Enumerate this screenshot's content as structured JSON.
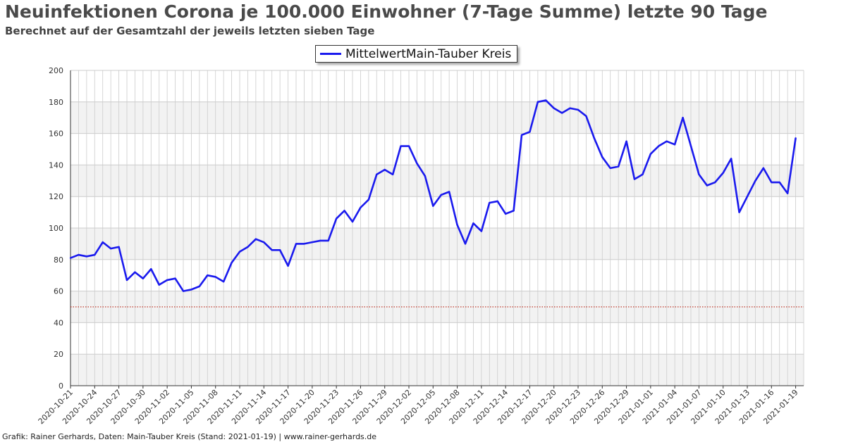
{
  "header": {
    "title": "Neuinfektionen Corona je 100.000 Einwohner (7-Tage Summe) letzte 90 Tage",
    "subtitle": "Berechnet auf der Gesamtzahl der jeweils letzten sieben Tage"
  },
  "footer": {
    "text": "Grafik: Rainer Gerhards, Daten: Main-Tauber Kreis (Stand: 2021-01-19) | www.rainer-gerhards.de"
  },
  "colors": {
    "series": "#1a1aee",
    "threshold": "#c0392b",
    "band": "#f2f2f2",
    "grid": "#cccccc"
  },
  "chart_data": {
    "type": "line",
    "title": "Neuinfektionen Corona je 100.000 Einwohner (7-Tage Summe) letzte 90 Tage",
    "subtitle": "Berechnet auf der Gesamtzahl der jeweils letzten sieben Tage",
    "xlabel": "",
    "ylabel": "",
    "ylim": [
      0,
      200
    ],
    "yticks": [
      0,
      20,
      40,
      60,
      80,
      100,
      120,
      140,
      160,
      180,
      200
    ],
    "grid": true,
    "legend_position": "top-center",
    "x_start": "2020-10-21",
    "x_end": "2021-01-20",
    "xtick_labels": [
      "2020-10-21",
      "2020-10-24",
      "2020-10-27",
      "2020-10-30",
      "2020-11-02",
      "2020-11-05",
      "2020-11-08",
      "2020-11-11",
      "2020-11-14",
      "2020-11-17",
      "2020-11-20",
      "2020-11-23",
      "2020-11-26",
      "2020-11-29",
      "2020-12-02",
      "2020-12-05",
      "2020-12-08",
      "2020-12-11",
      "2020-12-14",
      "2020-12-17",
      "2020-12-20",
      "2020-12-23",
      "2020-12-26",
      "2020-12-29",
      "2021-01-01",
      "2021-01-04",
      "2021-01-07",
      "2021-01-10",
      "2021-01-13",
      "2021-01-16",
      "2021-01-19"
    ],
    "threshold": 50,
    "series": [
      {
        "name": "MittelwertMain-Tauber Kreis",
        "values": [
          81,
          83,
          82,
          83,
          91,
          87,
          88,
          67,
          72,
          68,
          74,
          64,
          67,
          68,
          60,
          61,
          63,
          70,
          69,
          66,
          78,
          85,
          88,
          93,
          91,
          86,
          86,
          76,
          90,
          90,
          91,
          92,
          92,
          106,
          111,
          104,
          113,
          118,
          134,
          137,
          134,
          152,
          152,
          141,
          133,
          114,
          121,
          123,
          102,
          90,
          103,
          98,
          116,
          117,
          109,
          111,
          159,
          161,
          180,
          181,
          176,
          173,
          176,
          175,
          171,
          157,
          145,
          138,
          139,
          155,
          131,
          134,
          147,
          152,
          155,
          153,
          170,
          152,
          134,
          127,
          129,
          135,
          144,
          110,
          120,
          130,
          138,
          129,
          129,
          122,
          157
        ]
      }
    ]
  }
}
